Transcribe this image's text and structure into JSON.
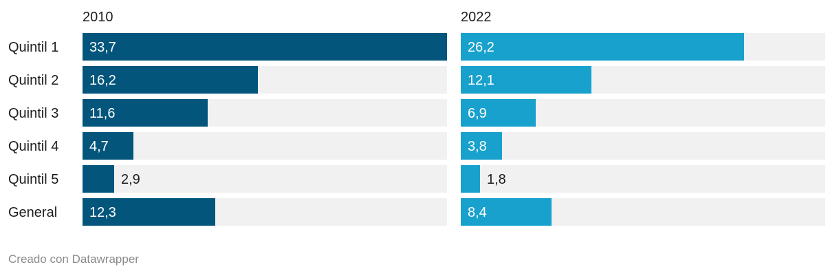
{
  "chart_data": {
    "type": "bar",
    "categories": [
      "Quintil 1",
      "Quintil 2",
      "Quintil 3",
      "Quintil 4",
      "Quintil 5",
      "General"
    ],
    "series": [
      {
        "name": "2010",
        "values": [
          33.7,
          16.2,
          11.6,
          4.7,
          2.9,
          12.3
        ],
        "labels": [
          "33,7",
          "16,2",
          "11,6",
          "4,7",
          "2,9",
          "12,3"
        ],
        "color": "#03557c"
      },
      {
        "name": "2022",
        "values": [
          26.2,
          12.1,
          6.9,
          3.8,
          1.8,
          8.4
        ],
        "labels": [
          "26,2",
          "12,1",
          "6,9",
          "3,8",
          "1,8",
          "8,4"
        ],
        "color": "#18a1cd"
      }
    ],
    "xlim": [
      0,
      33.7
    ],
    "background_color": "#f1f1f1"
  },
  "footer": {
    "credit": "Creado con Datawrapper"
  }
}
